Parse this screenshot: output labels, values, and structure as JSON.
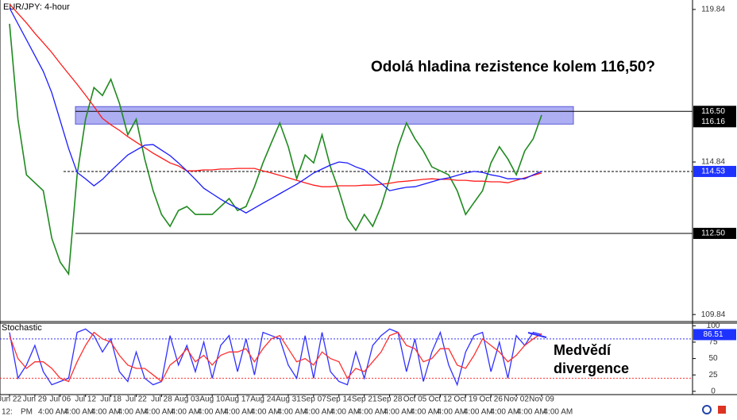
{
  "chart_data": [
    {
      "type": "line",
      "title": "EUR/JPY: 4-hour",
      "categories": [
        "Jun 22",
        null,
        null,
        "Jun 29",
        null,
        null,
        "Jul 06",
        null,
        null,
        "Jul 12",
        null,
        null,
        "Jul 18",
        null,
        null,
        "Jul 22",
        null,
        null,
        "Jul 28",
        null,
        null,
        "Aug 03",
        null,
        null,
        "Aug 10",
        null,
        null,
        "Aug 17",
        null,
        null,
        "Aug 24",
        null,
        null,
        "Aug 31",
        null,
        null,
        "Sep 07",
        null,
        null,
        "Sep 14",
        null,
        null,
        "Sep 21",
        null,
        null,
        "Sep 28",
        null,
        null,
        "Oct 05",
        null,
        null,
        "Oct 12",
        null,
        null,
        "Oct 19",
        null,
        null,
        "Oct 26",
        null,
        null,
        "Nov 02",
        null,
        null,
        "Nov 09"
      ],
      "series": [
        {
          "color": "#1f8a1f",
          "values": [
            119.37,
            116.24,
            114.42,
            114.16,
            113.9,
            112.34,
            111.56,
            111.17,
            114.42,
            116.24,
            117.28,
            117.02,
            117.55,
            116.77,
            115.73,
            116.24,
            114.94,
            113.9,
            113.12,
            112.73,
            113.25,
            113.38,
            113.12,
            113.12,
            113.12,
            113.38,
            113.64,
            113.25,
            113.38,
            114.03,
            114.81,
            115.47,
            116.12,
            115.34,
            114.29,
            115.07,
            114.81,
            115.73,
            114.68,
            113.9,
            112.99,
            112.6,
            113.12,
            112.73,
            113.38,
            114.29,
            115.34,
            116.12,
            115.6,
            115.2,
            114.68,
            114.55,
            114.42,
            113.9,
            113.12,
            113.51,
            113.9,
            114.81,
            115.34,
            114.94,
            114.42,
            115.2,
            115.6,
            116.38
          ]
        },
        {
          "color": "#ff1a1a",
          "values": [
            120.02,
            119.71,
            119.4,
            119.06,
            118.75,
            118.43,
            118.07,
            117.73,
            117.39,
            117.03,
            116.66,
            116.27,
            116.06,
            115.88,
            115.67,
            115.49,
            115.31,
            115.13,
            114.97,
            114.81,
            114.71,
            114.55,
            114.55,
            114.58,
            114.58,
            114.61,
            114.61,
            114.63,
            114.63,
            114.63,
            114.55,
            114.48,
            114.4,
            114.32,
            114.24,
            114.16,
            114.08,
            114.03,
            114.03,
            114.06,
            114.06,
            114.06,
            114.08,
            114.08,
            114.11,
            114.14,
            114.19,
            114.21,
            114.24,
            114.27,
            114.29,
            114.27,
            114.27,
            114.24,
            114.24,
            114.21,
            114.21,
            114.19,
            114.19,
            114.16,
            114.24,
            114.32,
            114.4,
            114.48
          ]
        },
        {
          "color": "#1a1aff",
          "values": [
            119.89,
            119.37,
            118.85,
            118.33,
            117.81,
            117.11,
            116.2,
            115.28,
            114.5,
            114.29,
            114.06,
            114.27,
            114.55,
            114.81,
            115.07,
            115.23,
            115.39,
            115.41,
            115.23,
            115.05,
            114.81,
            114.55,
            114.27,
            113.98,
            113.8,
            113.62,
            113.46,
            113.33,
            113.17,
            113.33,
            113.49,
            113.64,
            113.8,
            113.96,
            114.11,
            114.29,
            114.48,
            114.61,
            114.74,
            114.84,
            114.81,
            114.68,
            114.58,
            114.35,
            114.14,
            113.9,
            113.96,
            114.01,
            114.03,
            114.11,
            114.19,
            114.27,
            114.32,
            114.4,
            114.48,
            114.53,
            114.5,
            114.42,
            114.37,
            114.29,
            114.29,
            114.29,
            114.42,
            114.53
          ]
        }
      ],
      "ylim": [
        109.61,
        120.15
      ],
      "yticks": [
        119.84,
        114.84,
        109.84
      ],
      "resistance": {
        "value": 116.5,
        "label": "116.50"
      },
      "zone_low": 116.16,
      "zone_color": "#9a9af0",
      "support": {
        "value": 112.5,
        "label": "112.50"
      },
      "current": 114.53,
      "current_color": "#1e32ff",
      "annotation": "Odolá hladina rezistence kolem 116,50?"
    },
    {
      "type": "line",
      "title": "Stochastic",
      "series": [
        {
          "color": "#3030ff",
          "values": [
            90,
            20,
            40,
            70,
            30,
            10,
            15,
            20,
            90,
            95,
            85,
            60,
            80,
            30,
            15,
            60,
            20,
            10,
            15,
            85,
            40,
            70,
            30,
            75,
            20,
            70,
            85,
            30,
            80,
            25,
            90,
            85,
            80,
            40,
            20,
            85,
            20,
            90,
            30,
            15,
            10,
            60,
            20,
            70,
            85,
            95,
            90,
            30,
            80,
            15,
            60,
            90,
            40,
            10,
            60,
            85,
            90,
            30,
            75,
            20,
            85,
            70,
            90,
            86.51
          ]
        },
        {
          "color": "#ff3030",
          "values": [
            85,
            50,
            35,
            45,
            45,
            35,
            20,
            15,
            45,
            70,
            90,
            80,
            75,
            55,
            40,
            35,
            35,
            25,
            15,
            40,
            50,
            65,
            45,
            55,
            40,
            55,
            60,
            60,
            65,
            45,
            65,
            80,
            85,
            65,
            45,
            50,
            40,
            60,
            50,
            45,
            20,
            35,
            30,
            45,
            60,
            85,
            90,
            70,
            65,
            45,
            50,
            65,
            65,
            40,
            35,
            55,
            80,
            70,
            60,
            45,
            55,
            70,
            80,
            88
          ]
        }
      ],
      "ylim": [
        -5,
        104
      ],
      "yticks": [
        100,
        75,
        50,
        25,
        0
      ],
      "levels": [
        80,
        20
      ],
      "current": 86.51,
      "annotation": [
        "Medvědí",
        "divergence"
      ]
    }
  ],
  "time_row": [
    "12:",
    "PM",
    "4:00 AM",
    "4:00 AM",
    "4:00 AM",
    "4:00 AM",
    "4:00 AM",
    "4:00 AM",
    "4:00 AM",
    "4:00 AM",
    "4:00 AM",
    "4:00 AM",
    "4:00 AM",
    "4:00 AM",
    "4:00 AM",
    "4:00 AM",
    "4:00 AM",
    "4:00 AM",
    "4:00 AM",
    "4:00 AM",
    "4:00 AM",
    "4:00 AM"
  ]
}
